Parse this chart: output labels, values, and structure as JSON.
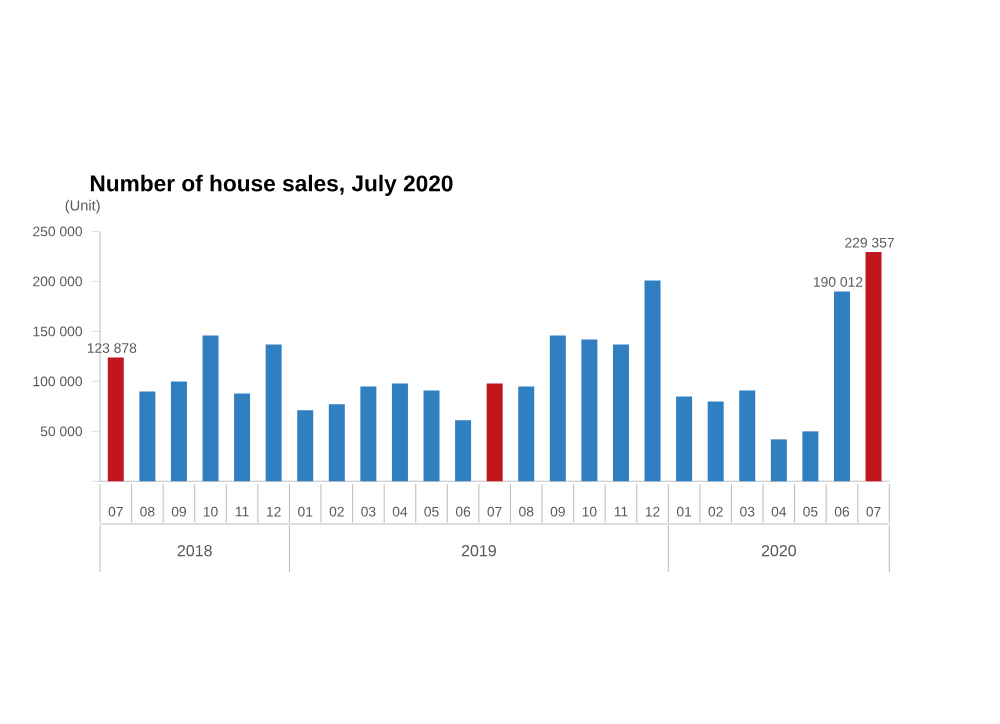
{
  "chart_data": {
    "type": "bar",
    "title": "Number of house sales, July 2020",
    "ylabel": "(Unit)",
    "categories": [
      "07",
      "08",
      "09",
      "10",
      "11",
      "12",
      "01",
      "02",
      "03",
      "04",
      "05",
      "06",
      "07",
      "08",
      "09",
      "10",
      "11",
      "12",
      "01",
      "02",
      "03",
      "04",
      "05",
      "06",
      "07"
    ],
    "values": [
      123878,
      90000,
      100000,
      146000,
      88000,
      137000,
      71000,
      77000,
      95000,
      98000,
      91000,
      61000,
      98000,
      95000,
      146000,
      142000,
      137000,
      201000,
      85000,
      80000,
      91000,
      42000,
      50000,
      190012,
      229357
    ],
    "colors": [
      "#c0161d",
      "#2f7fc1",
      "#2f7fc1",
      "#2f7fc1",
      "#2f7fc1",
      "#2f7fc1",
      "#2f7fc1",
      "#2f7fc1",
      "#2f7fc1",
      "#2f7fc1",
      "#2f7fc1",
      "#2f7fc1",
      "#c0161d",
      "#2f7fc1",
      "#2f7fc1",
      "#2f7fc1",
      "#2f7fc1",
      "#2f7fc1",
      "#2f7fc1",
      "#2f7fc1",
      "#2f7fc1",
      "#2f7fc1",
      "#2f7fc1",
      "#2f7fc1",
      "#c0161d"
    ],
    "value_labels": [
      "123 878",
      null,
      null,
      null,
      null,
      null,
      null,
      null,
      null,
      null,
      null,
      null,
      null,
      null,
      null,
      null,
      null,
      null,
      null,
      null,
      null,
      null,
      null,
      "190 012",
      "229 357"
    ],
    "ylim": [
      0,
      250000
    ],
    "yticks": [
      {
        "value": 0,
        "label": null
      },
      {
        "value": 50000,
        "label": "50 000"
      },
      {
        "value": 100000,
        "label": "100 000"
      },
      {
        "value": 150000,
        "label": "150 000"
      },
      {
        "value": 200000,
        "label": "200 000"
      },
      {
        "value": 250000,
        "label": "250 000"
      }
    ],
    "annotations": [
      "2018",
      "2019",
      "2020"
    ],
    "grid": false
  }
}
